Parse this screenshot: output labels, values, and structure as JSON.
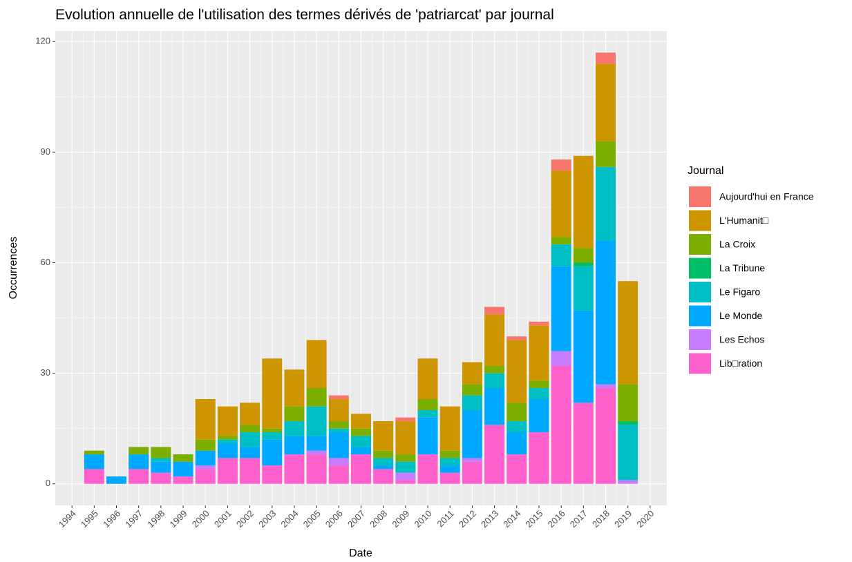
{
  "chart_data": {
    "type": "bar",
    "stacked": true,
    "title": "Evolution annuelle de l'utilisation des termes dérivés de 'patriarcat' par journal",
    "x_label": "Date",
    "y_label": "Occurrences",
    "legend_title": "Journal",
    "legend": "right",
    "grid": true,
    "x": [
      1995,
      1996,
      1997,
      1998,
      1999,
      2000,
      2001,
      2002,
      2003,
      2004,
      2005,
      2006,
      2007,
      2008,
      2009,
      2010,
      2011,
      2012,
      2013,
      2014,
      2015,
      2016,
      2017,
      2018,
      2019
    ],
    "xlim": [
      1993.25,
      2020.75
    ],
    "xticks": [
      1994,
      1995,
      1996,
      1997,
      1998,
      1999,
      2000,
      2001,
      2002,
      2003,
      2004,
      2005,
      2006,
      2007,
      2008,
      2009,
      2010,
      2011,
      2012,
      2013,
      2014,
      2015,
      2016,
      2017,
      2018,
      2019,
      2020
    ],
    "ylim": [
      -5.85,
      122.85
    ],
    "yticks": [
      0,
      30,
      60,
      90,
      120
    ],
    "series": [
      {
        "name": "Aujourd'hui en France",
        "color": "#F8766D",
        "values": [
          0,
          0,
          0,
          0,
          0,
          0,
          0,
          0,
          0,
          0,
          0,
          1,
          0,
          0,
          1,
          0,
          0,
          0,
          2,
          1,
          1,
          3,
          0,
          3,
          0
        ]
      },
      {
        "name": "L'Humanit□",
        "color": "#CD9600",
        "values": [
          0,
          0,
          0,
          0,
          0,
          11,
          8,
          6,
          19,
          10,
          13,
          6,
          4,
          8,
          9,
          11,
          12,
          6,
          14,
          17,
          15,
          18,
          25,
          21,
          28
        ]
      },
      {
        "name": "La Croix",
        "color": "#7CAE00",
        "values": [
          1,
          0,
          2,
          3,
          2,
          3,
          1,
          2,
          1,
          4,
          5,
          2,
          2,
          2,
          2,
          3,
          2,
          3,
          2,
          5,
          2,
          2,
          4,
          7,
          10
        ]
      },
      {
        "name": "La Tribune",
        "color": "#00BE67",
        "values": [
          0,
          0,
          0,
          0,
          0,
          0,
          0,
          0,
          0,
          0,
          0,
          0,
          0,
          0,
          0,
          0,
          0,
          0,
          0,
          0,
          0,
          0,
          1,
          0,
          1
        ]
      },
      {
        "name": "Le Figaro",
        "color": "#00BFC4",
        "values": [
          0,
          0,
          0,
          1,
          0,
          0,
          1,
          4,
          2,
          4,
          8,
          1,
          3,
          2,
          3,
          2,
          2,
          4,
          4,
          3,
          3,
          6,
          12,
          20,
          15
        ]
      },
      {
        "name": "Le Monde",
        "color": "#00A9FF",
        "values": [
          4,
          2,
          4,
          3,
          4,
          4,
          4,
          3,
          7,
          5,
          4,
          7,
          2,
          1,
          0,
          10,
          2,
          13,
          10,
          6,
          9,
          23,
          25,
          39,
          0
        ]
      },
      {
        "name": "Les Echos",
        "color": "#C77CFF",
        "values": [
          0,
          0,
          0,
          0,
          0,
          1,
          0,
          0,
          0,
          0,
          1,
          2,
          0,
          0,
          2,
          0,
          0,
          1,
          0,
          0,
          0,
          4,
          0,
          1,
          1
        ]
      },
      {
        "name": "Lib□ration",
        "color": "#FF61CC",
        "values": [
          4,
          0,
          4,
          3,
          2,
          4,
          7,
          7,
          5,
          8,
          8,
          5,
          8,
          4,
          1,
          8,
          3,
          6,
          16,
          8,
          14,
          32,
          22,
          26,
          0
        ]
      }
    ]
  }
}
